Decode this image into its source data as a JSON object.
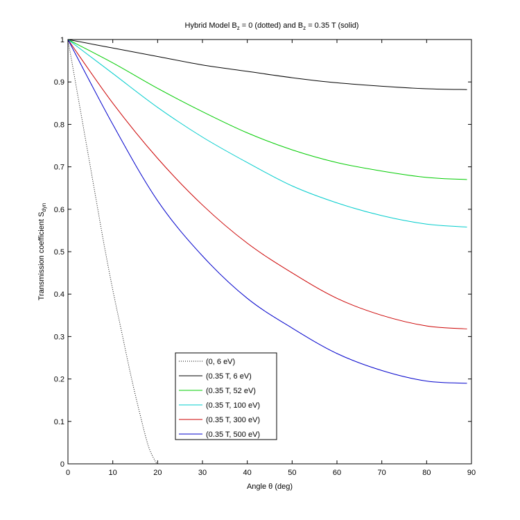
{
  "chart_data": {
    "type": "line",
    "title": {
      "prefix": "Hybrid Model B",
      "sub1": "z",
      "middle": " = 0 (dotted) and B",
      "sub2": "z",
      "suffix": " = 0.35 T (solid)"
    },
    "xlabel": "Angle θ (deg)",
    "ylabel": {
      "main": "Transmission coefficient S",
      "sub": "dyn"
    },
    "xlim": [
      0,
      90
    ],
    "ylim": [
      0,
      1
    ],
    "xticks": [
      "0",
      "10",
      "20",
      "30",
      "40",
      "50",
      "60",
      "70",
      "80",
      "90"
    ],
    "yticks": [
      "0",
      "0.1",
      "0.2",
      "0.3",
      "0.4",
      "0.5",
      "0.6",
      "0.7",
      "0.8",
      "0.9",
      "1"
    ],
    "grid": false,
    "legend_position": "bottom-center",
    "series": [
      {
        "name": "(0, 6 eV)",
        "color": "#000000",
        "style": "dotted",
        "x": [
          0,
          2,
          4,
          6,
          8,
          10,
          12,
          14,
          16,
          18,
          19.8
        ],
        "y": [
          1.0,
          0.88,
          0.76,
          0.64,
          0.52,
          0.41,
          0.31,
          0.21,
          0.12,
          0.04,
          0.0
        ]
      },
      {
        "name": "(0.35 T, 6 eV)",
        "color": "#000000",
        "style": "solid",
        "x": [
          0,
          10,
          20,
          30,
          40,
          50,
          60,
          70,
          80,
          89
        ],
        "y": [
          1.0,
          0.98,
          0.96,
          0.94,
          0.925,
          0.91,
          0.898,
          0.89,
          0.884,
          0.882
        ]
      },
      {
        "name": "(0.35 T, 52 eV)",
        "color": "#00cc00",
        "style": "solid",
        "x": [
          0,
          10,
          20,
          30,
          40,
          50,
          60,
          70,
          80,
          89
        ],
        "y": [
          1.0,
          0.945,
          0.885,
          0.83,
          0.78,
          0.74,
          0.71,
          0.69,
          0.675,
          0.67
        ]
      },
      {
        "name": "(0.35 T, 100 eV)",
        "color": "#00cccc",
        "style": "solid",
        "x": [
          0,
          10,
          20,
          30,
          40,
          50,
          60,
          70,
          80,
          89
        ],
        "y": [
          1.0,
          0.92,
          0.84,
          0.77,
          0.71,
          0.655,
          0.615,
          0.585,
          0.565,
          0.558
        ]
      },
      {
        "name": "(0.35 T, 300 eV)",
        "color": "#cc0000",
        "style": "solid",
        "x": [
          0,
          10,
          20,
          30,
          40,
          50,
          60,
          70,
          80,
          89
        ],
        "y": [
          1.0,
          0.85,
          0.72,
          0.61,
          0.52,
          0.45,
          0.39,
          0.35,
          0.325,
          0.318
        ]
      },
      {
        "name": "(0.35 T, 500 eV)",
        "color": "#0000cc",
        "style": "solid",
        "x": [
          0,
          10,
          20,
          30,
          40,
          50,
          60,
          70,
          80,
          89
        ],
        "y": [
          1.0,
          0.8,
          0.62,
          0.49,
          0.39,
          0.32,
          0.26,
          0.22,
          0.195,
          0.19
        ]
      }
    ]
  }
}
